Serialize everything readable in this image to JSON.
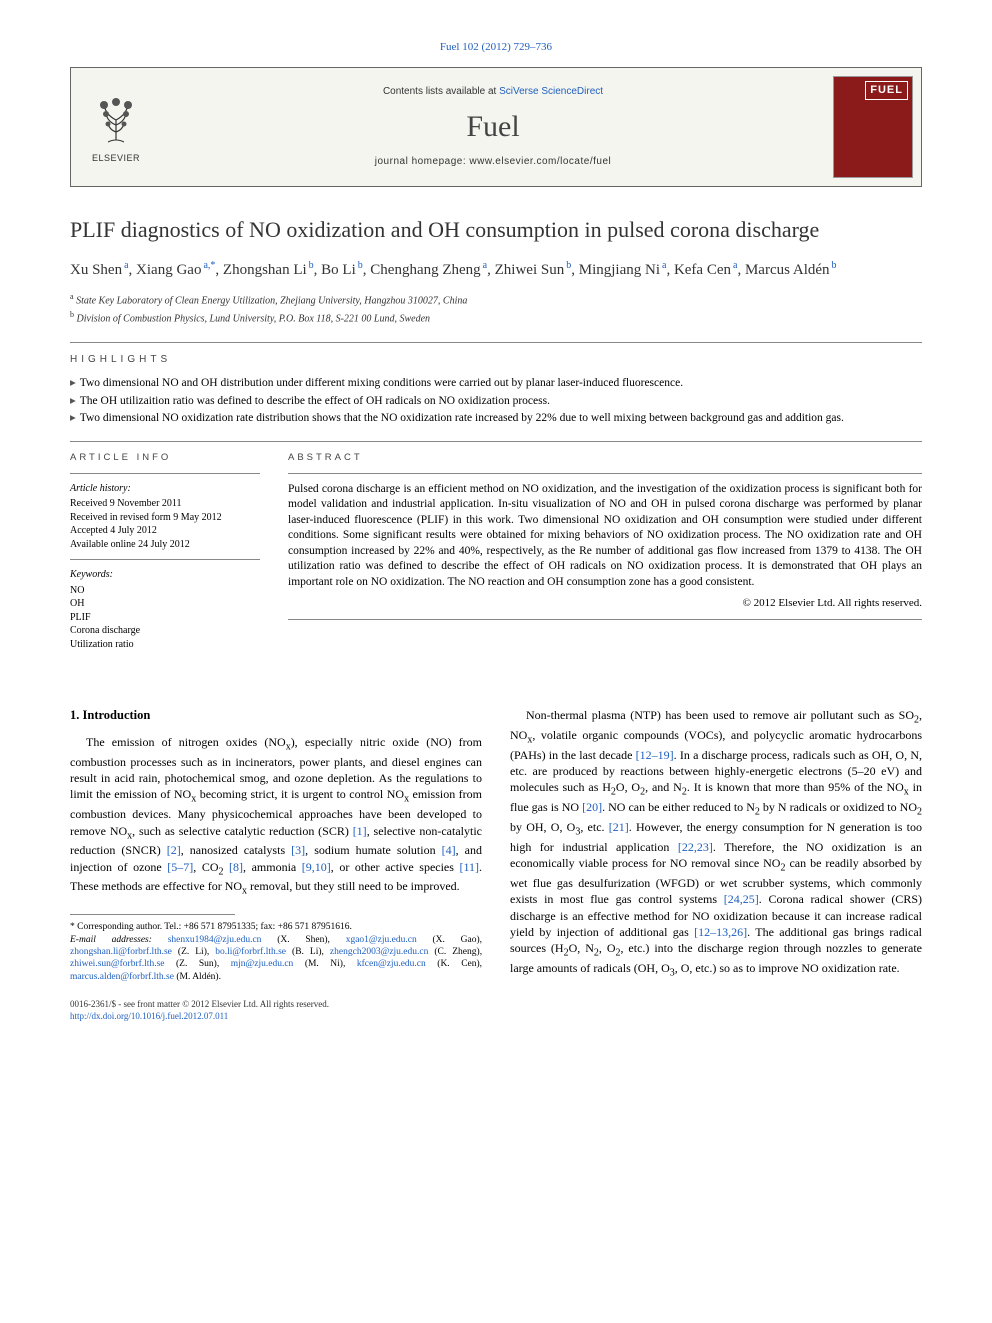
{
  "top_citation": "Fuel 102 (2012) 729–736",
  "header": {
    "contents_line_pre": "Contents lists available at ",
    "contents_link": "SciVerse ScienceDirect",
    "journal_name": "Fuel",
    "homepage_pre": "journal homepage: ",
    "homepage_url": "www.elsevier.com/locate/fuel",
    "publisher_label": "ELSEVIER",
    "cover_label": "FUEL"
  },
  "title": "PLIF diagnostics of NO oxidization and OH consumption in pulsed corona discharge",
  "authors_html_parts": [
    {
      "name": "Xu Shen",
      "sup": "a"
    },
    {
      "name": "Xiang Gao",
      "sup": "a,*"
    },
    {
      "name": "Zhongshan Li",
      "sup": "b"
    },
    {
      "name": "Bo Li",
      "sup": "b"
    },
    {
      "name": "Chenghang Zheng",
      "sup": "a"
    },
    {
      "name": "Zhiwei Sun",
      "sup": "b"
    },
    {
      "name": "Mingjiang Ni",
      "sup": "a"
    },
    {
      "name": "Kefa Cen",
      "sup": "a"
    },
    {
      "name": "Marcus Aldén",
      "sup": "b"
    }
  ],
  "affiliations": [
    {
      "sup": "a",
      "text": "State Key Laboratory of Clean Energy Utilization, Zhejiang University, Hangzhou 310027, China"
    },
    {
      "sup": "b",
      "text": "Division of Combustion Physics, Lund University, P.O. Box 118, S-221 00 Lund, Sweden"
    }
  ],
  "highlights_label": "highlights",
  "highlights": [
    "Two dimensional NO and OH distribution under different mixing conditions were carried out by planar laser-induced fluorescence.",
    "The OH utilizaition ratio was defined to describe the effect of OH radicals on NO oxidization process.",
    "Two dimensional NO oxidization rate distribution shows that the NO oxidization rate increased by 22% due to well mixing between background gas and addition gas."
  ],
  "article_info_label": "article info",
  "abstract_label": "abstract",
  "history_label": "Article history:",
  "history": [
    "Received 9 November 2011",
    "Received in revised form 9 May 2012",
    "Accepted 4 July 2012",
    "Available online 24 July 2012"
  ],
  "keywords_label": "Keywords:",
  "keywords": [
    "NO",
    "OH",
    "PLIF",
    "Corona discharge",
    "Utilization ratio"
  ],
  "abstract": "Pulsed corona discharge is an efficient method on NO oxidization, and the investigation of the oxidization process is significant both for model validation and industrial application. In-situ visualization of NO and OH in pulsed corona discharge was performed by planar laser-induced fluorescence (PLIF) in this work. Two dimensional NO oxidization and OH consumption were studied under different conditions. Some significant results were obtained for mixing behaviors of NO oxidization process. The NO oxidization rate and OH consumption increased by 22% and 40%, respectively, as the Re number of additional gas flow increased from 1379 to 4138. The OH utilization ratio was defined to describe the effect of OH radicals on NO oxidization process. It is demonstrated that OH plays an important role on NO oxidization. The NO reaction and OH consumption zone has a good consistent.",
  "copyright": "© 2012 Elsevier Ltd. All rights reserved.",
  "section_heading": "1. Introduction",
  "para1": "The emission of nitrogen oxides (NOx), especially nitric oxide (NO) from combustion processes such as in incinerators, power plants, and diesel engines can result in acid rain, photochemical smog, and ozone depletion. As the regulations to limit the emission of NOx becoming strict, it is urgent to control NOx emission from combustion devices. Many physicochemical approaches have been developed to remove NOx, such as selective catalytic reduction (SCR) [1], selective non-catalytic reduction (SNCR) [2], nanosized catalysts [3], sodium humate solution [4], and injection of ozone [5–7], CO2 [8], ammonia [9,10], or other active species [11]. These methods are effective for NOx removal, but they still need to be improved.",
  "para2": "Non-thermal plasma (NTP) has been used to remove air pollutant such as SO2, NOx, volatile organic compounds (VOCs), and polycyclic aromatic hydrocarbons (PAHs) in the last decade [12–19]. In a discharge process, radicals such as OH, O, N, etc. are produced by reactions between highly-energetic electrons (5–20 eV) and molecules such as H2O, O2, and N2. It is known that more than 95% of the NOx in flue gas is NO [20]. NO can be either reduced to N2 by N radicals or oxidized to NO2 by OH, O, O3, etc. [21]. However, the energy consumption for N generation is too high for industrial application [22,23]. Therefore, the NO oxidization is an economically viable process for NO removal since NO2 can be readily absorbed by wet flue gas desulfurization (WFGD) or wet scrubber systems, which commonly exists in most flue gas control systems [24,25]. Corona radical shower (CRS) discharge is an effective method for NO oxidization because it can increase radical yield by injection of additional gas [12–13,26]. The additional gas brings radical sources (H2O, N2, O2, etc.) into the discharge region through nozzles to generate large amounts of radicals (OH, O3, O, etc.) so as to improve NO oxidization rate.",
  "corr_label": "* Corresponding author. Tel.: +86 571 87951335; fax: +86 571 87951616.",
  "email_label": "E-mail addresses:",
  "emails": [
    {
      "addr": "shenxu1984@zju.edu.cn",
      "who": "(X. Shen)"
    },
    {
      "addr": "xgao1@zju.edu.cn",
      "who": "(X. Gao)"
    },
    {
      "addr": "zhongshan.li@forbrf.lth.se",
      "who": "(Z. Li)"
    },
    {
      "addr": "bo.li@forbrf.lth.se",
      "who": "(B. Li)"
    },
    {
      "addr": "zhengch2003@zju.edu.cn",
      "who": "(C. Zheng)"
    },
    {
      "addr": "zhiwei.sun@forbrf.lth.se",
      "who": "(Z. Sun)"
    },
    {
      "addr": "mjn@zju.edu.cn",
      "who": "(M. Ni)"
    },
    {
      "addr": "kfcen@zju.edu.cn",
      "who": "(K. Cen)"
    },
    {
      "addr": "marcus.alden@forbrf.lth.se",
      "who": "(M. Aldén)"
    }
  ],
  "footer_line1": "0016-2361/$ - see front matter © 2012 Elsevier Ltd. All rights reserved.",
  "footer_doi": "http://dx.doi.org/10.1016/j.fuel.2012.07.011",
  "colors": {
    "link": "#2060c0",
    "text": "#000000",
    "rule": "#888888",
    "header_bg": "#f5f5f0",
    "cover_bg": "#8b1a1a",
    "elsevier_orange": "#e67817"
  }
}
